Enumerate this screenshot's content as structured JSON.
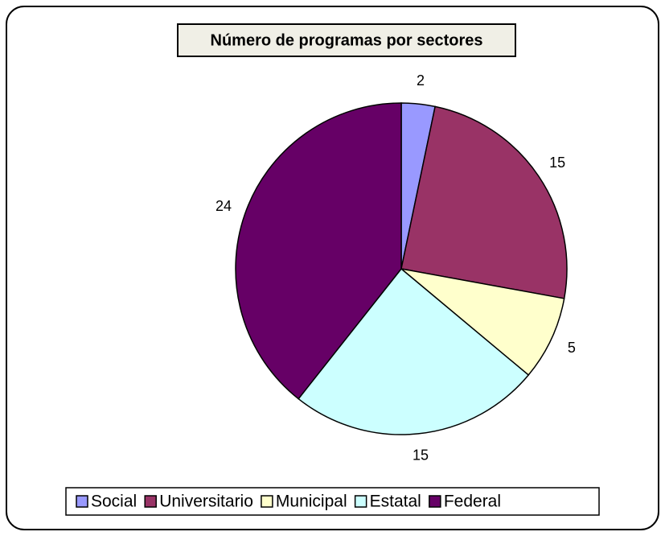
{
  "chart_data": {
    "type": "pie",
    "title": "Número de programas por sectores",
    "categories": [
      "Social",
      "Universitario",
      "Municipal",
      "Estatal",
      "Federal"
    ],
    "values": [
      2,
      15,
      5,
      15,
      24
    ],
    "colors": [
      "#9999ff",
      "#993366",
      "#ffffcc",
      "#ccffff",
      "#660066"
    ],
    "legend": "bottom"
  }
}
